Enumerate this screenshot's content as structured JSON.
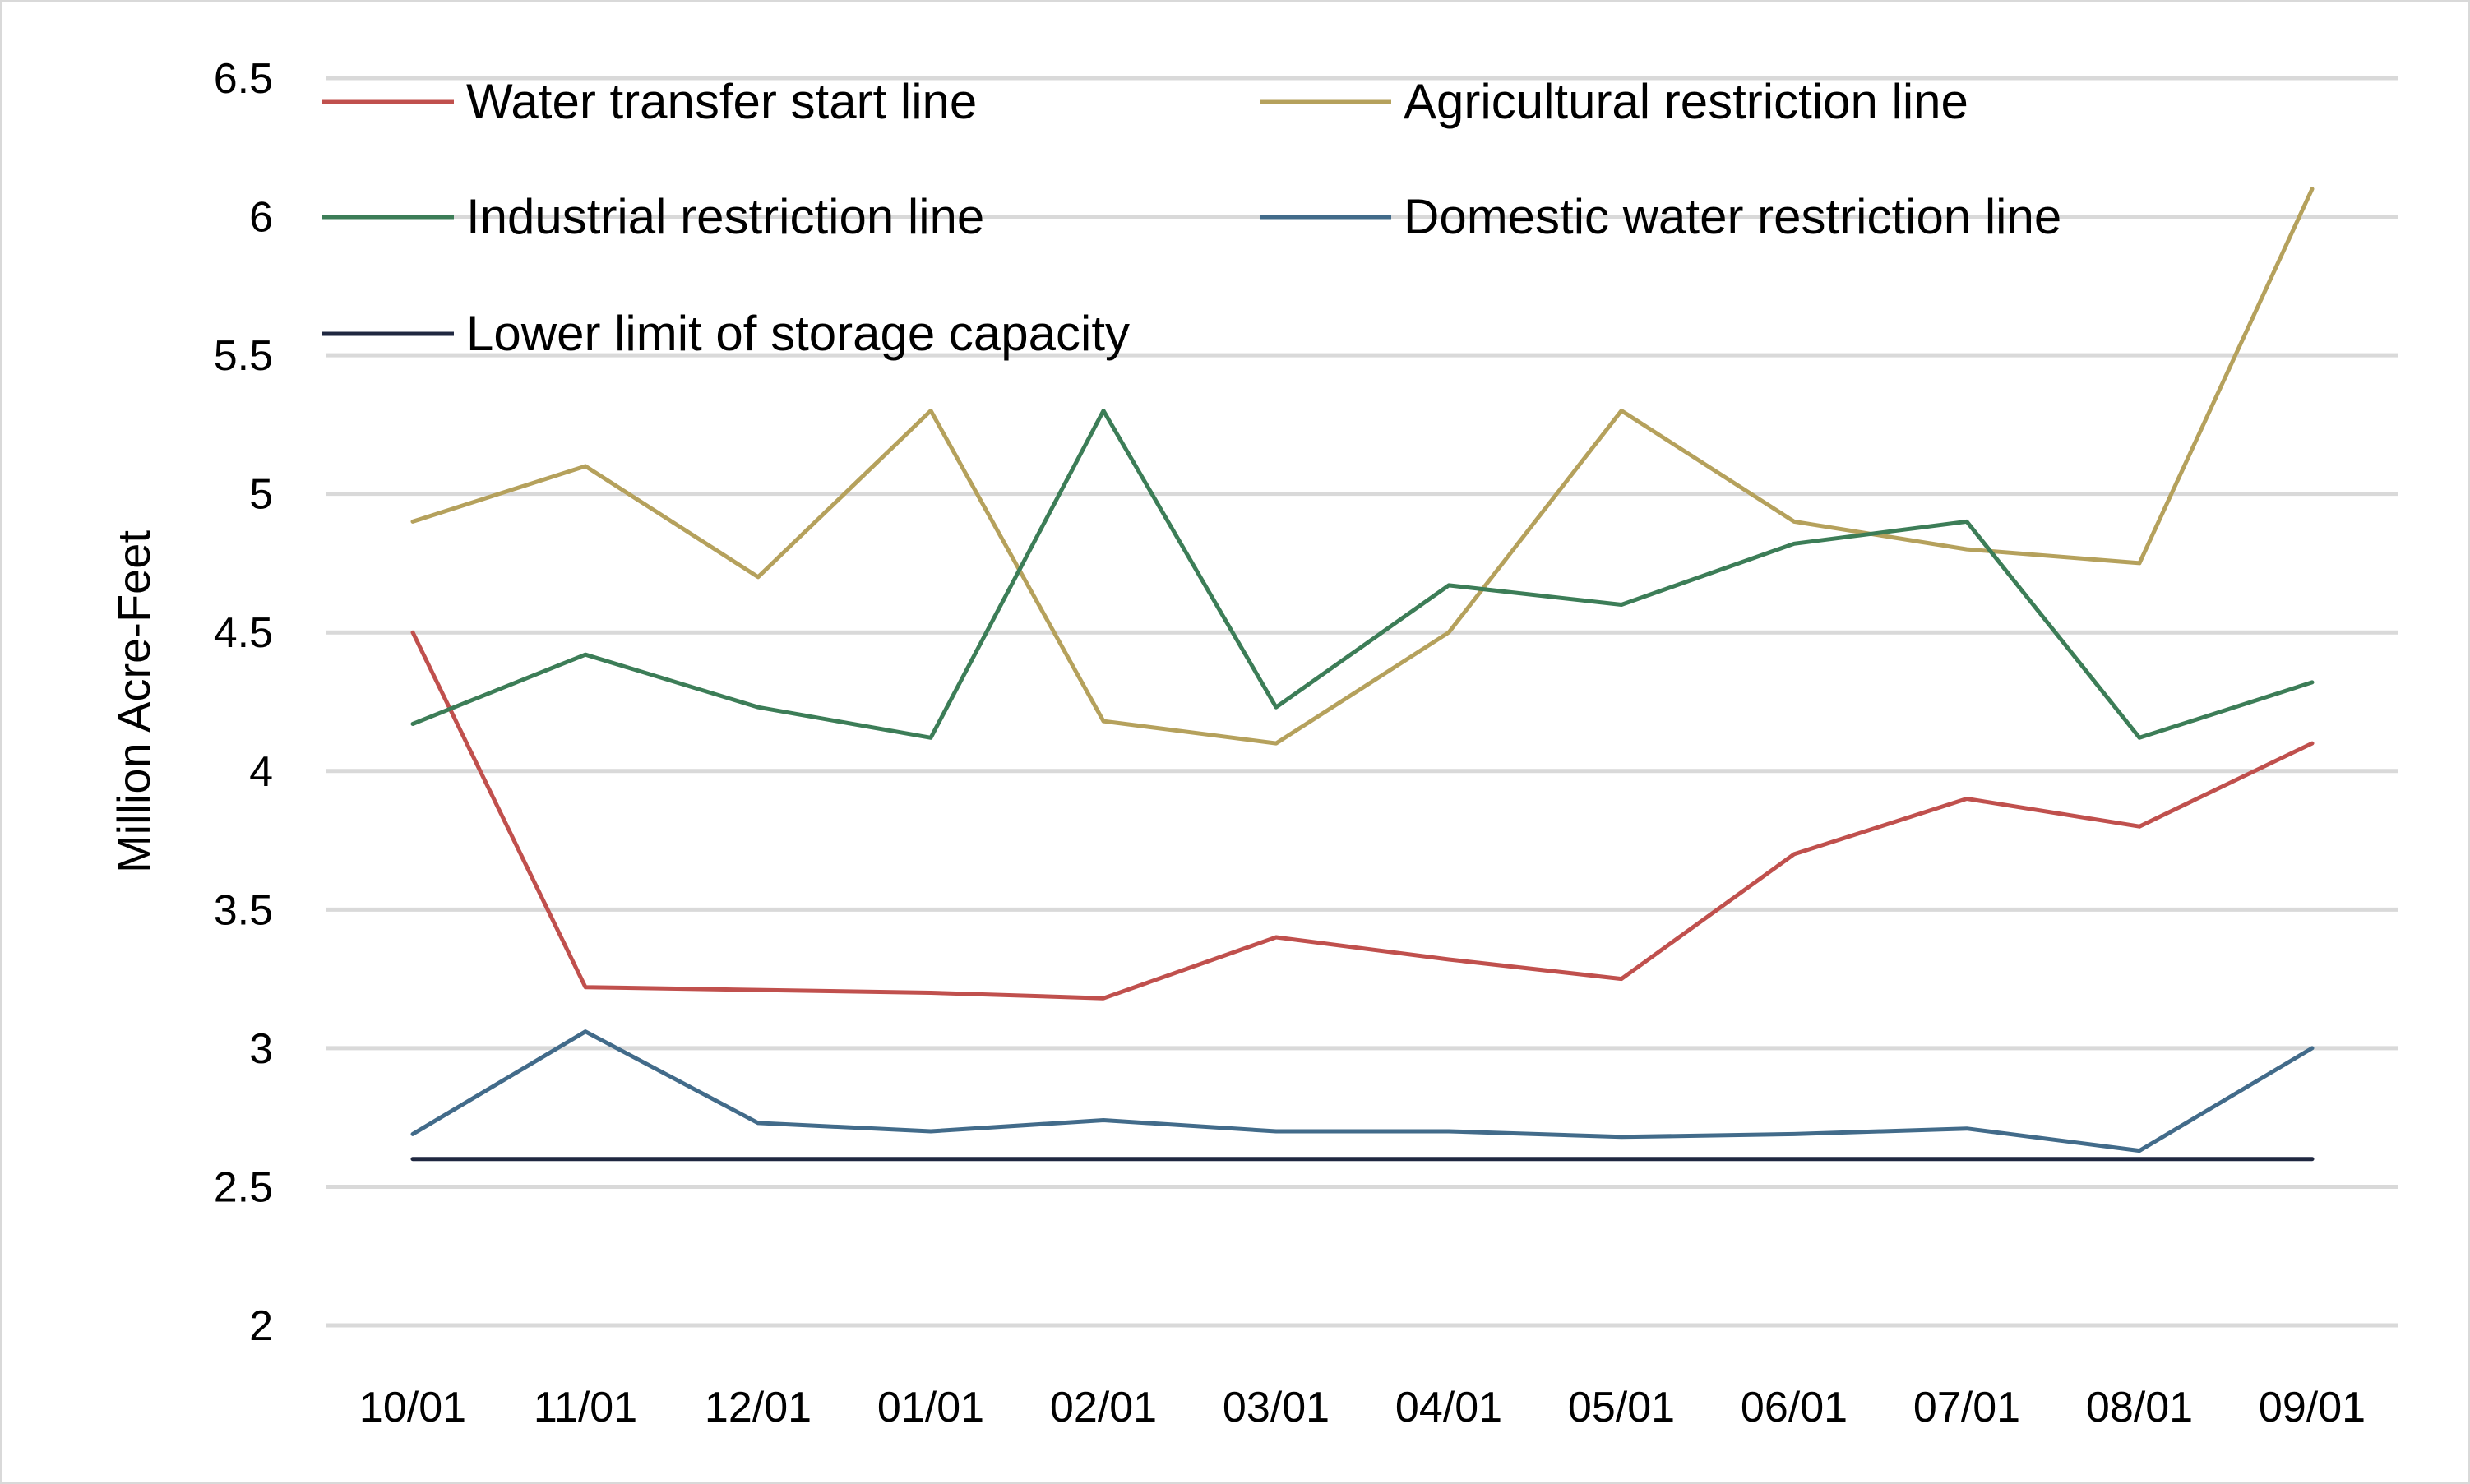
{
  "chart_data": {
    "type": "line",
    "title": "",
    "xlabel": "",
    "ylabel": "Million Acre-Feet",
    "ylim": [
      2,
      6.5
    ],
    "yticks": [
      "2",
      "2.5",
      "3",
      "3.5",
      "4",
      "4.5",
      "5",
      "5.5",
      "6",
      "6.5"
    ],
    "grid": true,
    "legend_position": "top",
    "categories": [
      "10/01",
      "11/01",
      "12/01",
      "01/01",
      "02/01",
      "03/01",
      "04/01",
      "05/01",
      "06/01",
      "07/01",
      "08/01",
      "09/01"
    ],
    "series": [
      {
        "name": "Water transfer start line",
        "color": "#c0504d",
        "values": [
          4.5,
          3.22,
          3.21,
          3.2,
          3.18,
          3.4,
          3.32,
          3.25,
          3.7,
          3.9,
          3.8,
          4.1
        ]
      },
      {
        "name": "Agricultural restriction line",
        "color": "#b5a15c",
        "values": [
          4.9,
          5.1,
          4.7,
          5.3,
          4.18,
          4.1,
          4.5,
          5.3,
          4.9,
          4.8,
          4.75,
          6.1
        ]
      },
      {
        "name": "Industrial restriction line",
        "color": "#3c7d57",
        "values": [
          4.17,
          4.42,
          4.23,
          4.12,
          5.3,
          4.23,
          4.67,
          4.6,
          4.82,
          4.9,
          4.12,
          4.32
        ]
      },
      {
        "name": "Domestic water restriction line",
        "color": "#426b8a",
        "values": [
          2.69,
          3.06,
          2.73,
          2.7,
          2.74,
          2.7,
          2.7,
          2.68,
          2.69,
          2.71,
          2.63,
          3.0
        ]
      },
      {
        "name": "Lower limit of storage capacity",
        "color": "#1f2740",
        "values": [
          2.6,
          2.6,
          2.6,
          2.6,
          2.6,
          2.6,
          2.6,
          2.6,
          2.6,
          2.6,
          2.6,
          2.6
        ]
      }
    ]
  }
}
